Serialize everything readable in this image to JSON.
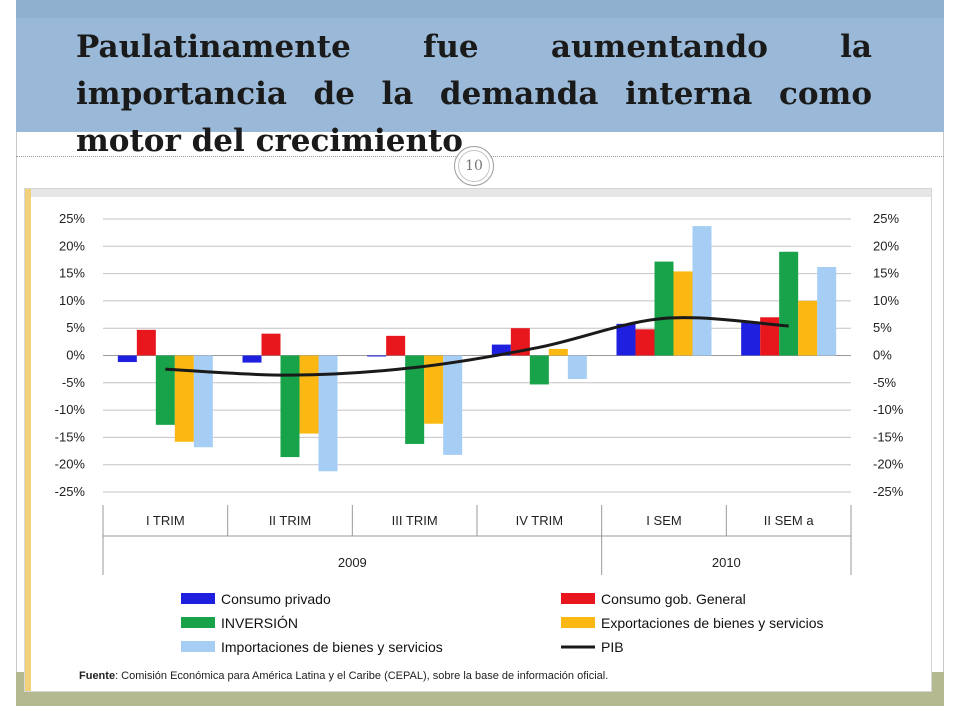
{
  "slide": {
    "title_lines": [
      "Paulatinamente fue aumentando la",
      "importancia de la demanda interna como",
      "motor del crecimiento"
    ],
    "page_number": "10"
  },
  "source": {
    "label": "Fuente",
    "text": ": Comisión Económica para América Latina y el Caribe (CEPAL), sobre la base de información oficial."
  },
  "chart_data": {
    "type": "bar",
    "categories": [
      "I TRIM",
      "II TRIM",
      "III TRIM",
      "IV TRIM",
      "I SEM",
      "II SEM a"
    ],
    "groups": [
      {
        "label": "2009",
        "categories": [
          "I TRIM",
          "II TRIM",
          "III TRIM",
          "IV TRIM"
        ]
      },
      {
        "label": "2010",
        "categories": [
          "I SEM",
          "II SEM a"
        ]
      }
    ],
    "y_ticks": [
      "25%",
      "20%",
      "15%",
      "10%",
      "5%",
      "0%",
      "-5%",
      "-10%",
      "-15%",
      "-20%",
      "-25%"
    ],
    "ylim": [
      -25,
      25
    ],
    "grid": true,
    "legend_position": "bottom",
    "series": [
      {
        "name": "Consumo privado",
        "color": "#1f1fe0",
        "values": [
          -1.2,
          -1.3,
          0.0,
          2.0,
          5.8,
          6.0
        ]
      },
      {
        "name": "Consumo gob. General",
        "color": "#e8171d",
        "values": [
          4.7,
          4.0,
          3.6,
          5.0,
          4.8,
          7.0
        ]
      },
      {
        "name": "INVERSIÓN",
        "color": "#18a34a",
        "values": [
          -12.7,
          -18.6,
          -16.2,
          -5.3,
          17.2,
          19.0
        ]
      },
      {
        "name": "Exportaciones de bienes y servicios",
        "color": "#fbb812",
        "values": [
          -15.8,
          -14.3,
          -12.5,
          1.2,
          15.4,
          10.0
        ]
      },
      {
        "name": "Importaciones de bienes y servicios",
        "color": "#a6cdf4",
        "values": [
          -16.8,
          -21.2,
          -18.2,
          -4.3,
          23.7,
          16.2
        ]
      }
    ],
    "line": {
      "name": "PIB",
      "color": "#1a1a1a",
      "values": [
        -2.5,
        -3.6,
        -2.2,
        1.5,
        6.8,
        5.4
      ]
    }
  }
}
